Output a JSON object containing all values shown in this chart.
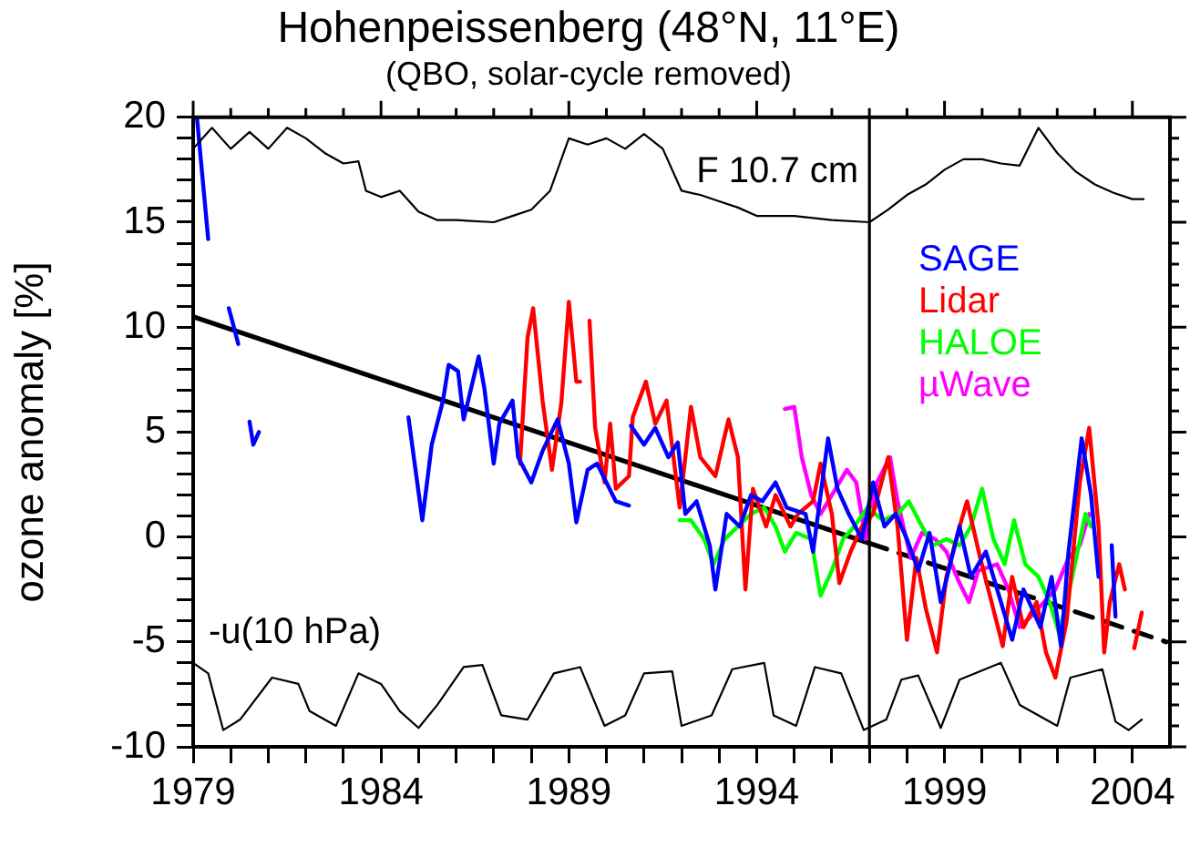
{
  "chart_data": {
    "type": "line",
    "title": "Hohenpeissenberg (48°N, 11°E)",
    "subtitle": "(QBO, solar-cycle removed)",
    "ylabel": "ozone anomaly [%]",
    "xlim": [
      1979,
      2005
    ],
    "ylim": [
      -10,
      20
    ],
    "xticks": [
      1979,
      {
        "value": 1980,
        "label": null
      },
      {
        "value": 1981,
        "label": null
      },
      {
        "value": 1982,
        "label": null
      },
      {
        "value": 1983,
        "label": null
      },
      1984,
      {
        "value": 1985,
        "label": null
      },
      {
        "value": 1986,
        "label": null
      },
      {
        "value": 1987,
        "label": null
      },
      {
        "value": 1988,
        "label": null
      },
      1989,
      {
        "value": 1990,
        "label": null
      },
      {
        "value": 1991,
        "label": null
      },
      {
        "value": 1992,
        "label": null
      },
      {
        "value": 1993,
        "label": null
      },
      1994,
      {
        "value": 1995,
        "label": null
      },
      {
        "value": 1996,
        "label": null
      },
      {
        "value": 1997,
        "label": null
      },
      {
        "value": 1998,
        "label": null
      },
      1999,
      {
        "value": 2000,
        "label": null
      },
      {
        "value": 2001,
        "label": null
      },
      {
        "value": 2002,
        "label": null
      },
      {
        "value": 2003,
        "label": null
      },
      2004
    ],
    "yticks": [
      -10,
      {
        "value": -9,
        "label": null
      },
      {
        "value": -8,
        "label": null
      },
      {
        "value": -7,
        "label": null
      },
      {
        "value": -6,
        "label": null
      },
      -5,
      {
        "value": -4,
        "label": null
      },
      {
        "value": -3,
        "label": null
      },
      {
        "value": -2,
        "label": null
      },
      {
        "value": -1,
        "label": null
      },
      0,
      {
        "value": 1,
        "label": null
      },
      {
        "value": 2,
        "label": null
      },
      {
        "value": 3,
        "label": null
      },
      {
        "value": 4,
        "label": null
      },
      5,
      {
        "value": 6,
        "label": null
      },
      {
        "value": 7,
        "label": null
      },
      {
        "value": 8,
        "label": null
      },
      {
        "value": 9,
        "label": null
      },
      10,
      {
        "value": 11,
        "label": null
      },
      {
        "value": 12,
        "label": null
      },
      {
        "value": 13,
        "label": null
      },
      {
        "value": 14,
        "label": null
      },
      15,
      {
        "value": 16,
        "label": null
      },
      {
        "value": 17,
        "label": null
      },
      {
        "value": 18,
        "label": null
      },
      {
        "value": 19,
        "label": null
      },
      20
    ],
    "grid": false,
    "legend": "right",
    "marker": "none",
    "line_style": "solid",
    "ref_lines": [
      {
        "axis": "x",
        "value": 1997,
        "color": "#000000"
      }
    ],
    "series": [
      {
        "name": "F 10.7 cm",
        "color": "#000000",
        "x": [
          1979,
          1979.5,
          1980,
          1980.5,
          1981,
          1981.5,
          1982,
          1982.5,
          1983,
          1983.4,
          1983.6,
          1984,
          1984.5,
          1985,
          1985.5,
          1986,
          1987,
          1987.5,
          1988,
          1988.5,
          1989,
          1989.5,
          1990,
          1990.5,
          1991,
          1991.5,
          1992,
          1992.5,
          1993,
          1993.5,
          1994,
          1995,
          1996,
          1997,
          1997.5,
          1998,
          1998.5,
          1999,
          1999.5,
          2000,
          2000.5,
          2001,
          2001.5,
          2002,
          2002.5,
          2003,
          2003.5,
          2004,
          2004.3
        ],
        "values": [
          18.5,
          19.5,
          18.5,
          19.3,
          18.5,
          19.5,
          19,
          18.3,
          17.8,
          17.9,
          16.5,
          16.2,
          16.5,
          15.5,
          15.1,
          15.1,
          15,
          15.3,
          15.6,
          16.5,
          19,
          18.7,
          19,
          18.5,
          19.2,
          18.5,
          16.5,
          16.3,
          16,
          15.7,
          15.3,
          15.3,
          15.1,
          15,
          15.6,
          16.3,
          16.8,
          17.5,
          18,
          18,
          17.8,
          17.7,
          19.5,
          18.3,
          17.4,
          16.8,
          16.4,
          16.1,
          16.1
        ]
      },
      {
        "name": "-u(10 hPa)",
        "color": "#000000",
        "x": [
          1979,
          1979.4,
          1979.8,
          1980.25,
          1981.1,
          1981.8,
          1982.1,
          1982.8,
          1983.4,
          1984,
          1984.5,
          1985,
          1985.5,
          1986.2,
          1986.7,
          1987.2,
          1987.9,
          1988.6,
          1989.3,
          1989.95,
          1990.5,
          1991,
          1991.75,
          1992,
          1992.8,
          1993.35,
          1994.2,
          1994.45,
          1995.05,
          1995.55,
          1996.25,
          1996.85,
          1997.45,
          1997.85,
          1998.3,
          1998.9,
          1999.4,
          2000.5,
          2001,
          2002,
          2002.35,
          2003.2,
          2003.55,
          2003.9,
          2004.25
        ],
        "values": [
          -6,
          -6.5,
          -9.2,
          -8.7,
          -6.7,
          -7,
          -8.3,
          -9,
          -6.5,
          -7,
          -8.3,
          -9.1,
          -8,
          -6.2,
          -6.1,
          -8.5,
          -8.7,
          -6.5,
          -6.2,
          -9,
          -8.5,
          -6.5,
          -6.4,
          -9,
          -8.5,
          -6.3,
          -6,
          -8.5,
          -9,
          -6.2,
          -6.5,
          -9.2,
          -8.7,
          -6.8,
          -6.6,
          -9.1,
          -6.8,
          -6,
          -8,
          -9,
          -6.7,
          -6.3,
          -8.8,
          -9.2,
          -8.7
        ]
      },
      {
        "name": "SAGE",
        "color": "#0000ff",
        "x": [
          1979.1,
          1979.4,
          1979.7,
          1979.95,
          1980.2,
          1980.4,
          1980.5,
          1980.6,
          1980.75,
          1984.6,
          1984.73,
          1985.1,
          1985.35,
          1985.65,
          1985.8,
          1986.05,
          1986.2,
          1986.6,
          1986.75,
          1987,
          1987.15,
          1987.5,
          1987.65,
          1988,
          1988.3,
          1988.7,
          1989,
          1989.2,
          1989.5,
          1989.75,
          1990,
          1990.25,
          1990.6,
          1990.63,
          1990.65,
          1991,
          1991.3,
          1991.65,
          1991.9,
          1992.1,
          1992.4,
          1992.75,
          1992.9,
          1993.2,
          1993.55,
          1993.85,
          1994.15,
          1994.5,
          1994.8,
          1995.3,
          1995.5,
          1995.9,
          1996.15,
          1996.45,
          1996.8,
          1997.1,
          1997.4,
          1997.7,
          1998,
          1998.3,
          1998.6,
          1998.9,
          1999.4,
          1999.7,
          2000.1,
          2000.4,
          2000.8,
          2001.1,
          2001.55,
          2001.85,
          2002.1,
          2002.3,
          2002.65,
          2002.9,
          2003.1,
          2003.3,
          2003.45,
          2003.55
        ],
        "values": [
          20,
          14.2,
          null,
          10.9,
          9.2,
          null,
          5.5,
          4.4,
          5,
          null,
          5.7,
          0.8,
          4.4,
          6.5,
          8.2,
          7.9,
          5.6,
          8.6,
          7.1,
          3.5,
          5.4,
          6.5,
          3.8,
          2.6,
          4.1,
          5.6,
          3.5,
          0.7,
          3.2,
          3.5,
          2.6,
          1.7,
          1.5,
          null,
          5.3,
          4.4,
          5.2,
          3.8,
          4.5,
          1.1,
          1.7,
          -0.4,
          -2.5,
          1.1,
          0.5,
          2,
          1.7,
          2.6,
          1.4,
          1.1,
          -0.7,
          4.7,
          2.3,
          1.1,
          -0.1,
          2.6,
          0.5,
          1.1,
          -0.1,
          -1.6,
          0.2,
          -3.1,
          0.5,
          -1.9,
          -0.7,
          -2.5,
          -4.9,
          -2.5,
          -4.3,
          -1.9,
          -5.2,
          -0.7,
          4.7,
          2,
          -1.9,
          null,
          -0.4,
          -3.8
        ]
      },
      {
        "name": "Lidar",
        "color": "#ff0000",
        "x": [
          1987.7,
          1987.9,
          1988.05,
          1988.3,
          1988.55,
          1988.8,
          1989,
          1989.2,
          1989.3,
          1989.45,
          1989.55,
          1989.7,
          1989.95,
          1990.1,
          1990.25,
          1990.6,
          1990.7,
          1991.05,
          1991.3,
          1991.6,
          1991.95,
          1992.25,
          1992.5,
          1992.9,
          1993.25,
          1993.5,
          1993.7,
          1993.9,
          1994.25,
          1994.5,
          1994.9,
          1995.1,
          1995.5,
          1995.7,
          1996,
          1996.2,
          1996.5,
          1996.8,
          1997.1,
          1997.5,
          1997.75,
          1998,
          1998.25,
          1998.5,
          1998.8,
          1999.05,
          1999.4,
          1999.6,
          1999.95,
          2000.25,
          2000.55,
          2000.8,
          2001.1,
          2001.45,
          2001.7,
          2001.95,
          2002.25,
          2002.6,
          2002.85,
          2003.1,
          2003.25,
          2003.4,
          2003.65,
          2003.8,
          2003.95,
          2004.05,
          2004.25
        ],
        "values": [
          3.5,
          9.5,
          10.9,
          6.5,
          3.2,
          6.4,
          11.2,
          7.4,
          7.4,
          null,
          10.3,
          5.2,
          2.6,
          5.4,
          2.3,
          2.9,
          5.7,
          7.4,
          5.4,
          6.5,
          1.4,
          6.2,
          3.8,
          2.9,
          5.6,
          3.8,
          -2.5,
          2.3,
          0.5,
          2,
          0.5,
          1.1,
          1.7,
          3.5,
          1.1,
          -2.2,
          -0.7,
          0.5,
          1.1,
          3.8,
          0.5,
          -4.9,
          -1,
          -3.4,
          -5.5,
          -1.9,
          0.5,
          1.7,
          -1,
          -3.1,
          -5.2,
          -1.9,
          -4.3,
          -3.1,
          -5.5,
          -6.7,
          -4,
          2.6,
          5.2,
          0.5,
          -5.5,
          -3.1,
          -1.3,
          -2.5,
          null,
          -5.3,
          -3.6
        ]
      },
      {
        "name": "HALOE",
        "color": "#00ff00",
        "x": [
          1991.95,
          1992.25,
          1992.6,
          1992.85,
          1993.15,
          1993.5,
          1993.85,
          1994.2,
          1994.5,
          1994.75,
          1995.05,
          1995.45,
          1995.7,
          1996,
          1996.3,
          1996.6,
          1996.95,
          1997.35,
          1997.75,
          1998.05,
          1998.4,
          1998.7,
          1999.05,
          1999.4,
          1999.7,
          2000,
          2000.3,
          2000.6,
          2000.85,
          2001.15,
          2001.5,
          2001.8,
          2002.05,
          2002.4,
          2002.75,
          2002.9
        ],
        "values": [
          0.8,
          0.8,
          -0.1,
          -1.3,
          -0.1,
          0.5,
          1.1,
          1.4,
          0.5,
          -0.7,
          0.2,
          -0.1,
          -2.8,
          -1.6,
          -0.1,
          0.5,
          1.4,
          0.8,
          1.1,
          1.7,
          0.5,
          -0.4,
          -0.1,
          -0.4,
          0.5,
          2.3,
          -0.1,
          -1.3,
          0.8,
          -1.3,
          -1.9,
          -3.1,
          -4.6,
          -1.9,
          1.1,
          0.5
        ]
      },
      {
        "name": "µWave",
        "color": "#ff00ff",
        "x": [
          1994.75,
          1995,
          1995.2,
          1995.45,
          1995.7,
          1996,
          1996.4,
          1996.65,
          1996.9,
          1997.2,
          1997.55,
          1997.75,
          1998.1,
          1998.4,
          1998.75,
          1999.05,
          1999.4,
          1999.65,
          1999.9,
          2000.4,
          2000.7,
          2001,
          2001.35,
          2001.65,
          2001.95,
          2002.3,
          2002.6,
          2002.85
        ],
        "values": [
          6.1,
          6.2,
          3.8,
          2,
          1.1,
          2,
          3.2,
          2.6,
          -0.1,
          2.6,
          3.8,
          1.7,
          -1,
          0.2,
          -0.1,
          -0.7,
          -2.2,
          -3.1,
          -1.6,
          -1.3,
          -2.5,
          -4.3,
          -3.7,
          -3.1,
          -2.5,
          -1,
          -0.4,
          1.1
        ]
      },
      {
        "color": "#000000",
        "x": [
          1979,
          1997
        ],
        "values": [
          10.5,
          -0.3
        ]
      },
      {
        "color": "#000000",
        "x": [
          1997,
          2004.9
        ],
        "values": [
          -0.3,
          -5
        ],
        "line_style": "dashed"
      }
    ]
  }
}
